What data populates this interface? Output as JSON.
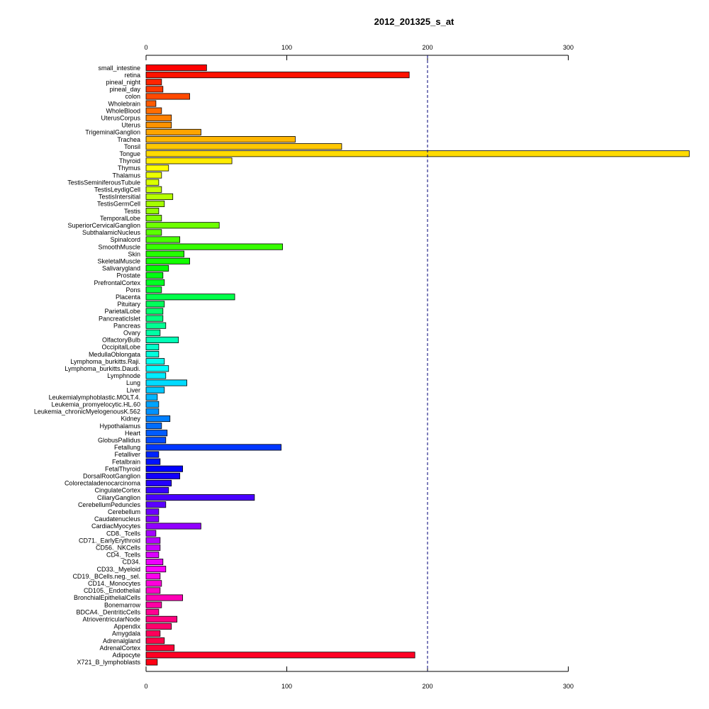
{
  "chart_data": {
    "type": "bar",
    "orientation": "horizontal",
    "title": "2012_201325_s_at",
    "xlabel": "",
    "ylabel": "",
    "xlim": [
      0,
      385
    ],
    "xticks": [
      0,
      100,
      200,
      300
    ],
    "reference_line": 200,
    "axis_top": true,
    "axis_bottom": true,
    "grid": false,
    "categories": [
      "small_intestine",
      "retina",
      "pineal_night",
      "pineal_day",
      "colon",
      "Wholebrain",
      "WholeBlood",
      "UterusCorpus",
      "Uterus",
      "TrigeminalGanglion",
      "Trachea",
      "Tonsil",
      "Tongue",
      "Thyroid",
      "Thymus",
      "Thalamus",
      "TestisSeminiferousTubule",
      "TestisLeydigCell",
      "TestisIntersitial",
      "TestisGermCell",
      "Testis",
      "TemporalLobe",
      "SuperiorCervicalGanglion",
      "SubthalamicNucleus",
      "Spinalcord",
      "SmoothMuscle",
      "Skin",
      "SkeletalMuscle",
      "Salivarygland",
      "Prostate",
      "PrefrontalCortex",
      "Pons",
      "Placenta",
      "Pituitary",
      "ParietalLobe",
      "PancreaticIslet",
      "Pancreas",
      "Ovary",
      "OlfactoryBulb",
      "OccipitalLobe",
      "MedullaOblongata",
      "Lymphoma_burkitts.Raji.",
      "Lymphoma_burkitts.Daudi.",
      "Lymphnode",
      "Lung",
      "Liver",
      "Leukemialymphoblastic.MOLT.4.",
      "Leukemia_promyelocytic.HL.60",
      "Leukemia_chronicMyelogenousK.562",
      "Kidney",
      "Hypothalamus",
      "Heart",
      "GlobusPallidus",
      "Fetallung",
      "Fetalliver",
      "Fetalbrain",
      "FetalThyroid",
      "DorsalRootGanglion",
      "Colorectaladenocarcinoma",
      "CingulateCortex",
      "CiliaryGanglion",
      "CerebellumPeduncles",
      "Cerebellum",
      "Caudatenucleus",
      "CardiacMyocytes",
      "CD8._Tcells",
      "CD71._EarlyErythroid",
      "CD56._NKCells",
      "CD4._Tcells",
      "CD34.",
      "CD33._Myeloid",
      "CD19._BCells.neg._sel.",
      "CD14._Monocytes",
      "CD105._Endothelial",
      "BronchialEpithelialCells",
      "Bonemarrow",
      "BDCA4._DentriticCells",
      "AtrioventricularNode",
      "Appendix",
      "Amygdala",
      "Adrenalgland",
      "AdrenalCortex",
      "Adipocyte",
      "X721_B_lymphoblasts"
    ],
    "values": [
      43,
      187,
      11,
      12,
      31,
      7,
      11,
      18,
      18,
      39,
      106,
      139,
      386,
      61,
      16,
      11,
      9,
      11,
      19,
      13,
      9,
      11,
      52,
      11,
      24,
      97,
      27,
      31,
      16,
      12,
      13,
      11,
      63,
      13,
      12,
      12,
      14,
      10,
      23,
      9,
      9,
      13,
      16,
      14,
      29,
      13,
      8,
      9,
      9,
      17,
      11,
      15,
      14,
      96,
      9,
      10,
      26,
      24,
      18,
      16,
      77,
      14,
      9,
      9,
      39,
      7,
      10,
      10,
      9,
      12,
      14,
      10,
      11,
      10,
      26,
      11,
      9,
      22,
      18,
      10,
      13,
      20,
      191,
      8
    ]
  }
}
